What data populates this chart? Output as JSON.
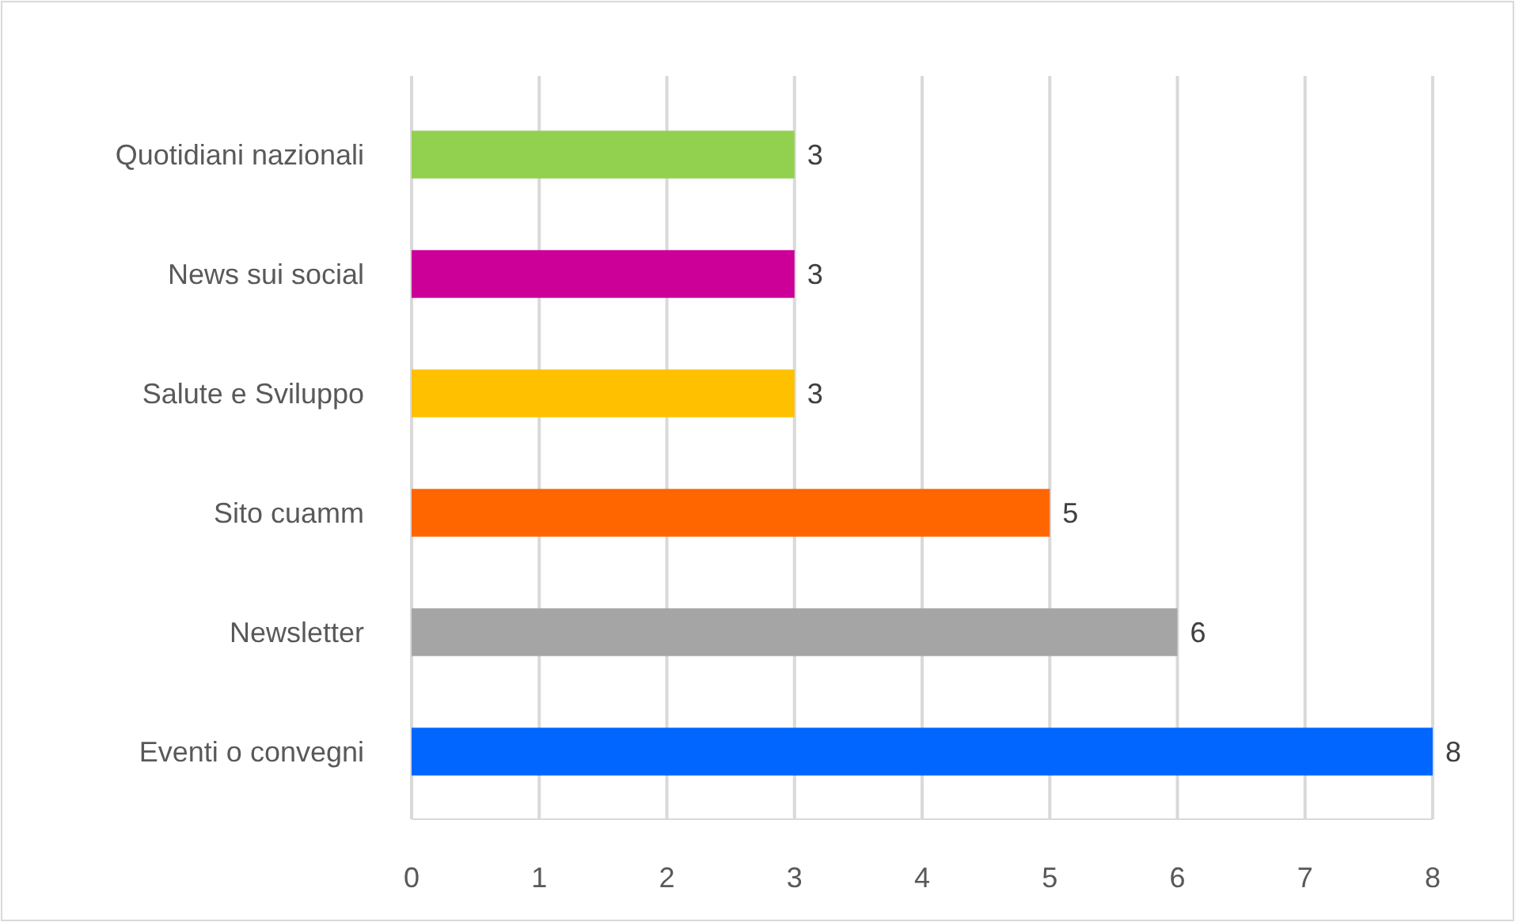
{
  "chart_data": {
    "type": "bar",
    "orientation": "horizontal",
    "categories": [
      "Quotidiani nazionali",
      "News sui social",
      "Salute e Sviluppo",
      "Sito cuamm",
      "Newsletter",
      "Eventi o convegni"
    ],
    "values": [
      3,
      3,
      3,
      5,
      6,
      8
    ],
    "colors": [
      "#92d050",
      "#cc0099",
      "#ffc000",
      "#ff6600",
      "#a5a5a5",
      "#0066ff"
    ],
    "xlim": [
      0,
      8
    ],
    "xticks": [
      0,
      1,
      2,
      3,
      4,
      5,
      6,
      7,
      8
    ],
    "grid": "x",
    "data_labels": true
  }
}
